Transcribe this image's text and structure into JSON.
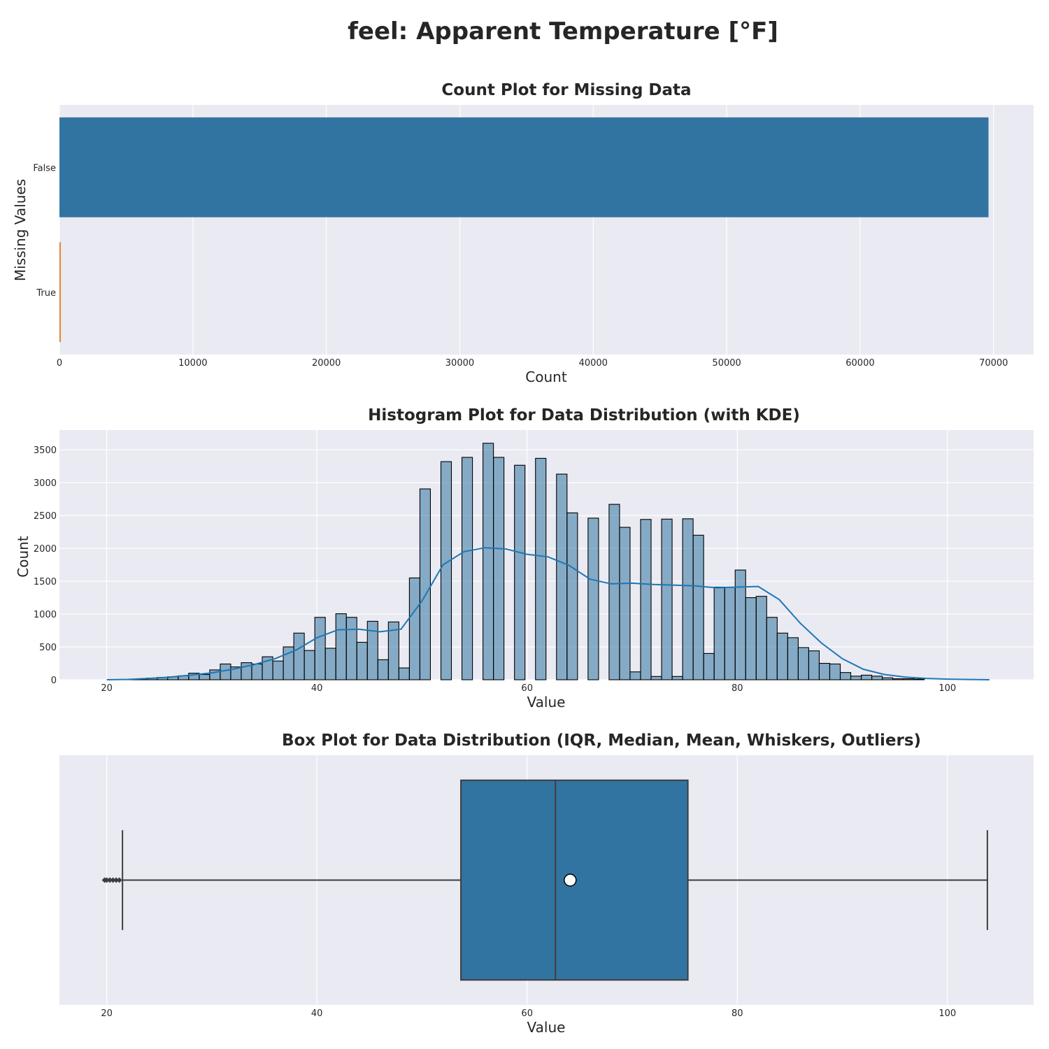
{
  "figure": {
    "suptitle": "feel: Apparent Temperature [°F]"
  },
  "chart_data": [
    {
      "type": "bar",
      "orientation": "horizontal",
      "title": "Count Plot for Missing Data",
      "xlabel": "Count",
      "ylabel": "Missing Values",
      "categories": [
        "False",
        "True"
      ],
      "values": [
        69620,
        100
      ],
      "colors": [
        "#3274a1",
        "#e1812c"
      ],
      "xlim": [
        0,
        73000
      ],
      "xticks": [
        0,
        10000,
        20000,
        30000,
        40000,
        50000,
        60000,
        70000
      ],
      "grid": true
    },
    {
      "type": "bar",
      "subtype": "histogram",
      "title": "Histogram Plot for Data Distribution (with KDE)",
      "xlabel": "Value",
      "ylabel": "Count",
      "bin_start": 19.8,
      "bin_width": 1.0,
      "values": [
        0,
        0,
        5,
        15,
        25,
        35,
        45,
        60,
        100,
        80,
        150,
        240,
        195,
        260,
        240,
        350,
        285,
        500,
        710,
        445,
        950,
        480,
        1005,
        950,
        570,
        890,
        305,
        880,
        180,
        1550,
        2905,
        0,
        3320,
        0,
        3385,
        0,
        3600,
        3385,
        0,
        3265,
        0,
        3370,
        0,
        3130,
        2540,
        0,
        2460,
        0,
        2670,
        2320,
        120,
        2440,
        50,
        2445,
        50,
        2450,
        2200,
        400,
        1410,
        1410,
        1670,
        1250,
        1270,
        950,
        710,
        640,
        490,
        440,
        250,
        240,
        110,
        55,
        70,
        55,
        30,
        15,
        15,
        10,
        0,
        0,
        0,
        0,
        0,
        0
      ],
      "kde_x": [
        20,
        22,
        24,
        26,
        28,
        30,
        32,
        34,
        36,
        38,
        40,
        42,
        44,
        46,
        48,
        50,
        52,
        54,
        56,
        58,
        60,
        62,
        64,
        66,
        68,
        70,
        72,
        74,
        76,
        78,
        80,
        82,
        84,
        86,
        88,
        90,
        92,
        94,
        96,
        98,
        100,
        102,
        104
      ],
      "kde_y": [
        0,
        5,
        20,
        40,
        70,
        105,
        160,
        230,
        320,
        450,
        640,
        760,
        770,
        730,
        770,
        1200,
        1750,
        1950,
        2010,
        1990,
        1910,
        1870,
        1740,
        1530,
        1460,
        1470,
        1450,
        1440,
        1430,
        1400,
        1410,
        1420,
        1220,
        860,
        560,
        320,
        160,
        80,
        40,
        20,
        10,
        4,
        0
      ],
      "xlim": [
        15.5,
        108.2
      ],
      "ylim": [
        0,
        3800
      ],
      "xticks": [
        20,
        40,
        60,
        80,
        100
      ],
      "yticks": [
        0,
        500,
        1000,
        1500,
        2000,
        2500,
        3000,
        3500
      ],
      "bar_color": "#3274a1",
      "kde_color": "#1f77b4",
      "grid": true
    },
    {
      "type": "box",
      "title": "Box Plot for Data Distribution (IQR, Median, Mean, Whiskers, Outliers)",
      "xlabel": "Value",
      "q1": 53.7,
      "median": 62.7,
      "q3": 75.3,
      "mean": 64.1,
      "whisker_low": 21.5,
      "whisker_high": 103.8,
      "outliers": [
        19.8,
        20.0,
        20.3,
        20.6,
        20.9,
        21.2
      ],
      "xlim": [
        15.5,
        108.2
      ],
      "xticks": [
        20,
        40,
        60,
        80,
        100
      ],
      "box_color": "#3274a1",
      "grid": true
    }
  ]
}
